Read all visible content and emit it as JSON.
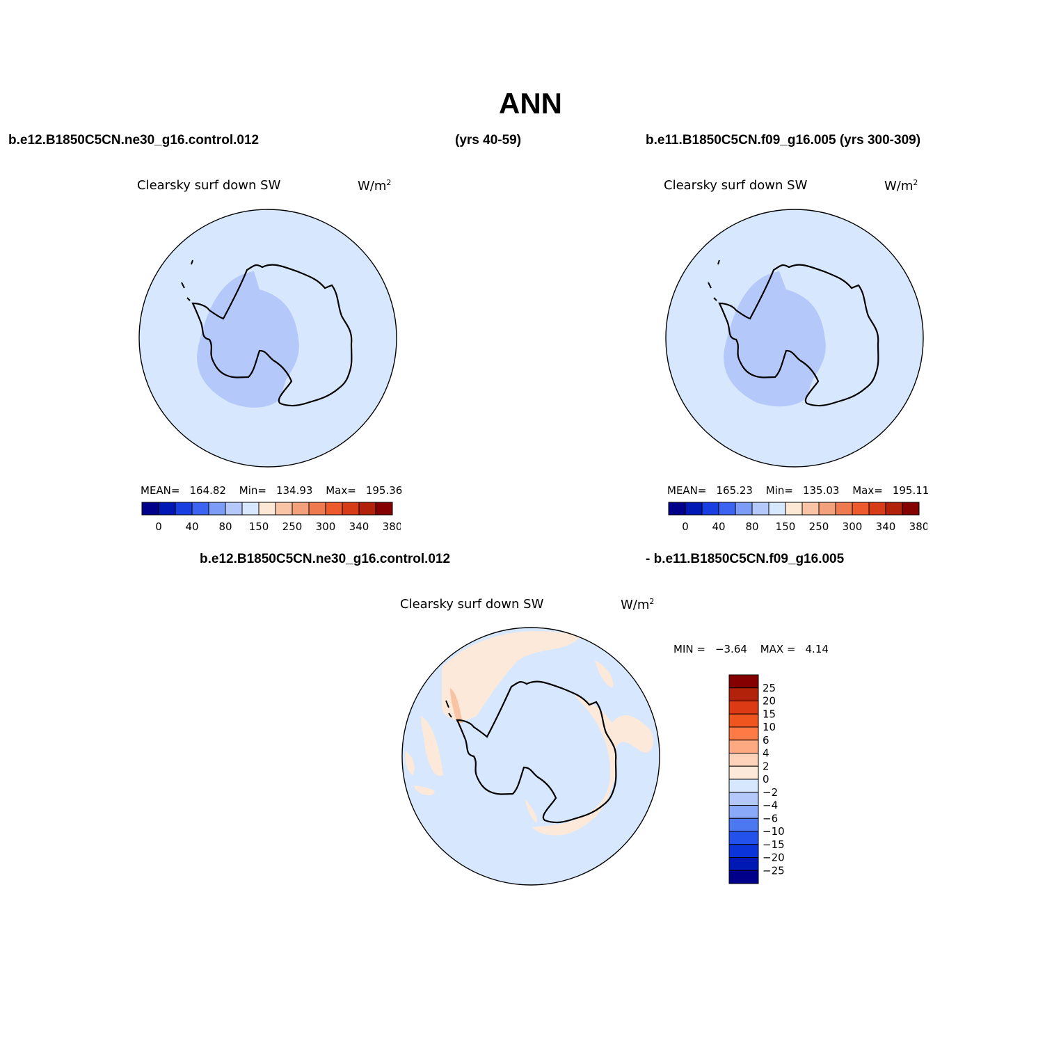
{
  "title": "ANN",
  "header": {
    "case1": "b.e12.B1850C5CN.ne30_g16.control.012",
    "case1_years": "(yrs 40-59)",
    "case2": "b.e11.B1850C5CN.f09_g16.005 (yrs 300-309)",
    "diff_case1": "b.e12.B1850C5CN.ne30_g16.control.012",
    "diff_case2": "- b.e11.B1850C5CN.f09_g16.005"
  },
  "panels": [
    {
      "variable": "Clearsky surf down SW",
      "units": "W/m",
      "units_sup": "2",
      "mean_label": "MEAN=",
      "mean": "164.82",
      "min_label": "Min=",
      "min": "134.93",
      "max_label": "Max=",
      "max": "195.36"
    },
    {
      "variable": "Clearsky surf down SW",
      "units": "W/m",
      "units_sup": "2",
      "mean_label": "MEAN=",
      "mean": "165.23",
      "min_label": "Min=",
      "min": "135.03",
      "max_label": "Max=",
      "max": "195.11"
    }
  ],
  "diff_panel": {
    "variable": "Clearsky surf down SW",
    "units": "W/m",
    "units_sup": "2",
    "min_label": "MIN =",
    "min": "−3.64",
    "max_label": "MAX =",
    "max": "4.14"
  },
  "colorbar_main": {
    "colors": [
      "#00008b",
      "#0018b4",
      "#1a3fe0",
      "#3c64f0",
      "#7d9cf7",
      "#b4c8fa",
      "#d7e8fe",
      "#fde8d6",
      "#f9c4a6",
      "#f4a07c",
      "#f07a50",
      "#ec5a2e",
      "#d63c17",
      "#b2220a",
      "#850000"
    ],
    "labels": [
      "0",
      "40",
      "80",
      "150",
      "250",
      "300",
      "340",
      "380"
    ]
  },
  "colorbar_diff": {
    "colors_top_to_bottom": [
      "#850000",
      "#b2220a",
      "#dc3a14",
      "#f0541f",
      "#ff7a44",
      "#ffa982",
      "#ffd2b9",
      "#fde9d9",
      "#d7e8fe",
      "#b4c8fa",
      "#8aa9f8",
      "#4c78f2",
      "#2252eb",
      "#0c34db",
      "#0019b4",
      "#00008b"
    ],
    "labels_top_to_bottom": [
      "25",
      "20",
      "15",
      "10",
      "6",
      "4",
      "2",
      "0",
      "−2",
      "−4",
      "−6",
      "−10",
      "−15",
      "−20",
      "−25"
    ]
  },
  "map_colors": {
    "ocean": "#d7e8fe",
    "low_band": "#b4c8fa",
    "diff_pos": "#fde9d9",
    "diff_pos_strong": "#f9c4a6",
    "diff_neg": "#b4c8fa"
  }
}
